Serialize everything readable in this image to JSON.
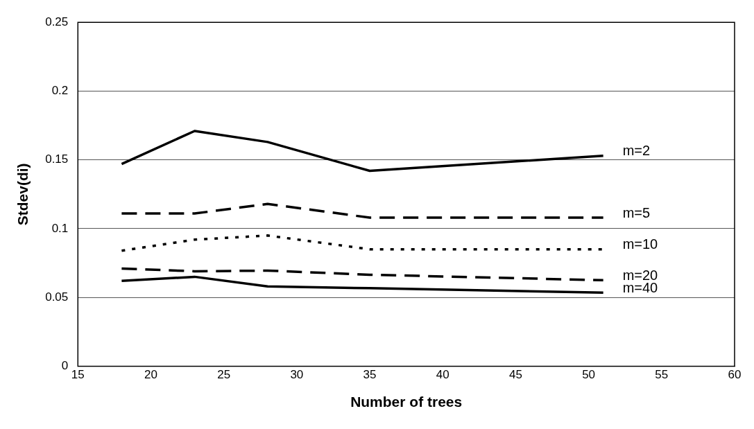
{
  "chart_data": {
    "type": "line",
    "xlabel": "Number of trees",
    "ylabel": "Stdev(di)",
    "x": [
      18,
      23,
      28,
      35,
      51
    ],
    "series": [
      {
        "name": "m=2",
        "color": "#000000",
        "line_style": "solid",
        "values": [
          0.147,
          0.171,
          0.163,
          0.142,
          0.153
        ]
      },
      {
        "name": "m=5",
        "color": "#000000",
        "line_style": "dashed",
        "values": [
          0.111,
          0.111,
          0.118,
          0.108,
          0.108
        ]
      },
      {
        "name": "m=10",
        "color": "#000000",
        "line_style": "dotted",
        "values": [
          0.084,
          0.092,
          0.095,
          0.085,
          0.085
        ]
      },
      {
        "name": "m=20",
        "color": "#000000",
        "line_style": "dashed",
        "values": [
          0.071,
          0.069,
          0.0695,
          0.0665,
          0.0625
        ]
      },
      {
        "name": "m=40",
        "color": "#000000",
        "line_style": "solid",
        "values": [
          0.062,
          0.065,
          0.058,
          0.0567,
          0.0535
        ]
      }
    ],
    "xlim": [
      15,
      60
    ],
    "xticks": [
      15,
      20,
      25,
      30,
      35,
      40,
      45,
      50,
      55,
      60
    ],
    "ylim": [
      0,
      0.25
    ],
    "yticks": [
      0,
      0.05,
      0.1,
      0.15,
      0.2,
      0.25
    ],
    "grid": "y",
    "legend": false,
    "marker": "none"
  }
}
